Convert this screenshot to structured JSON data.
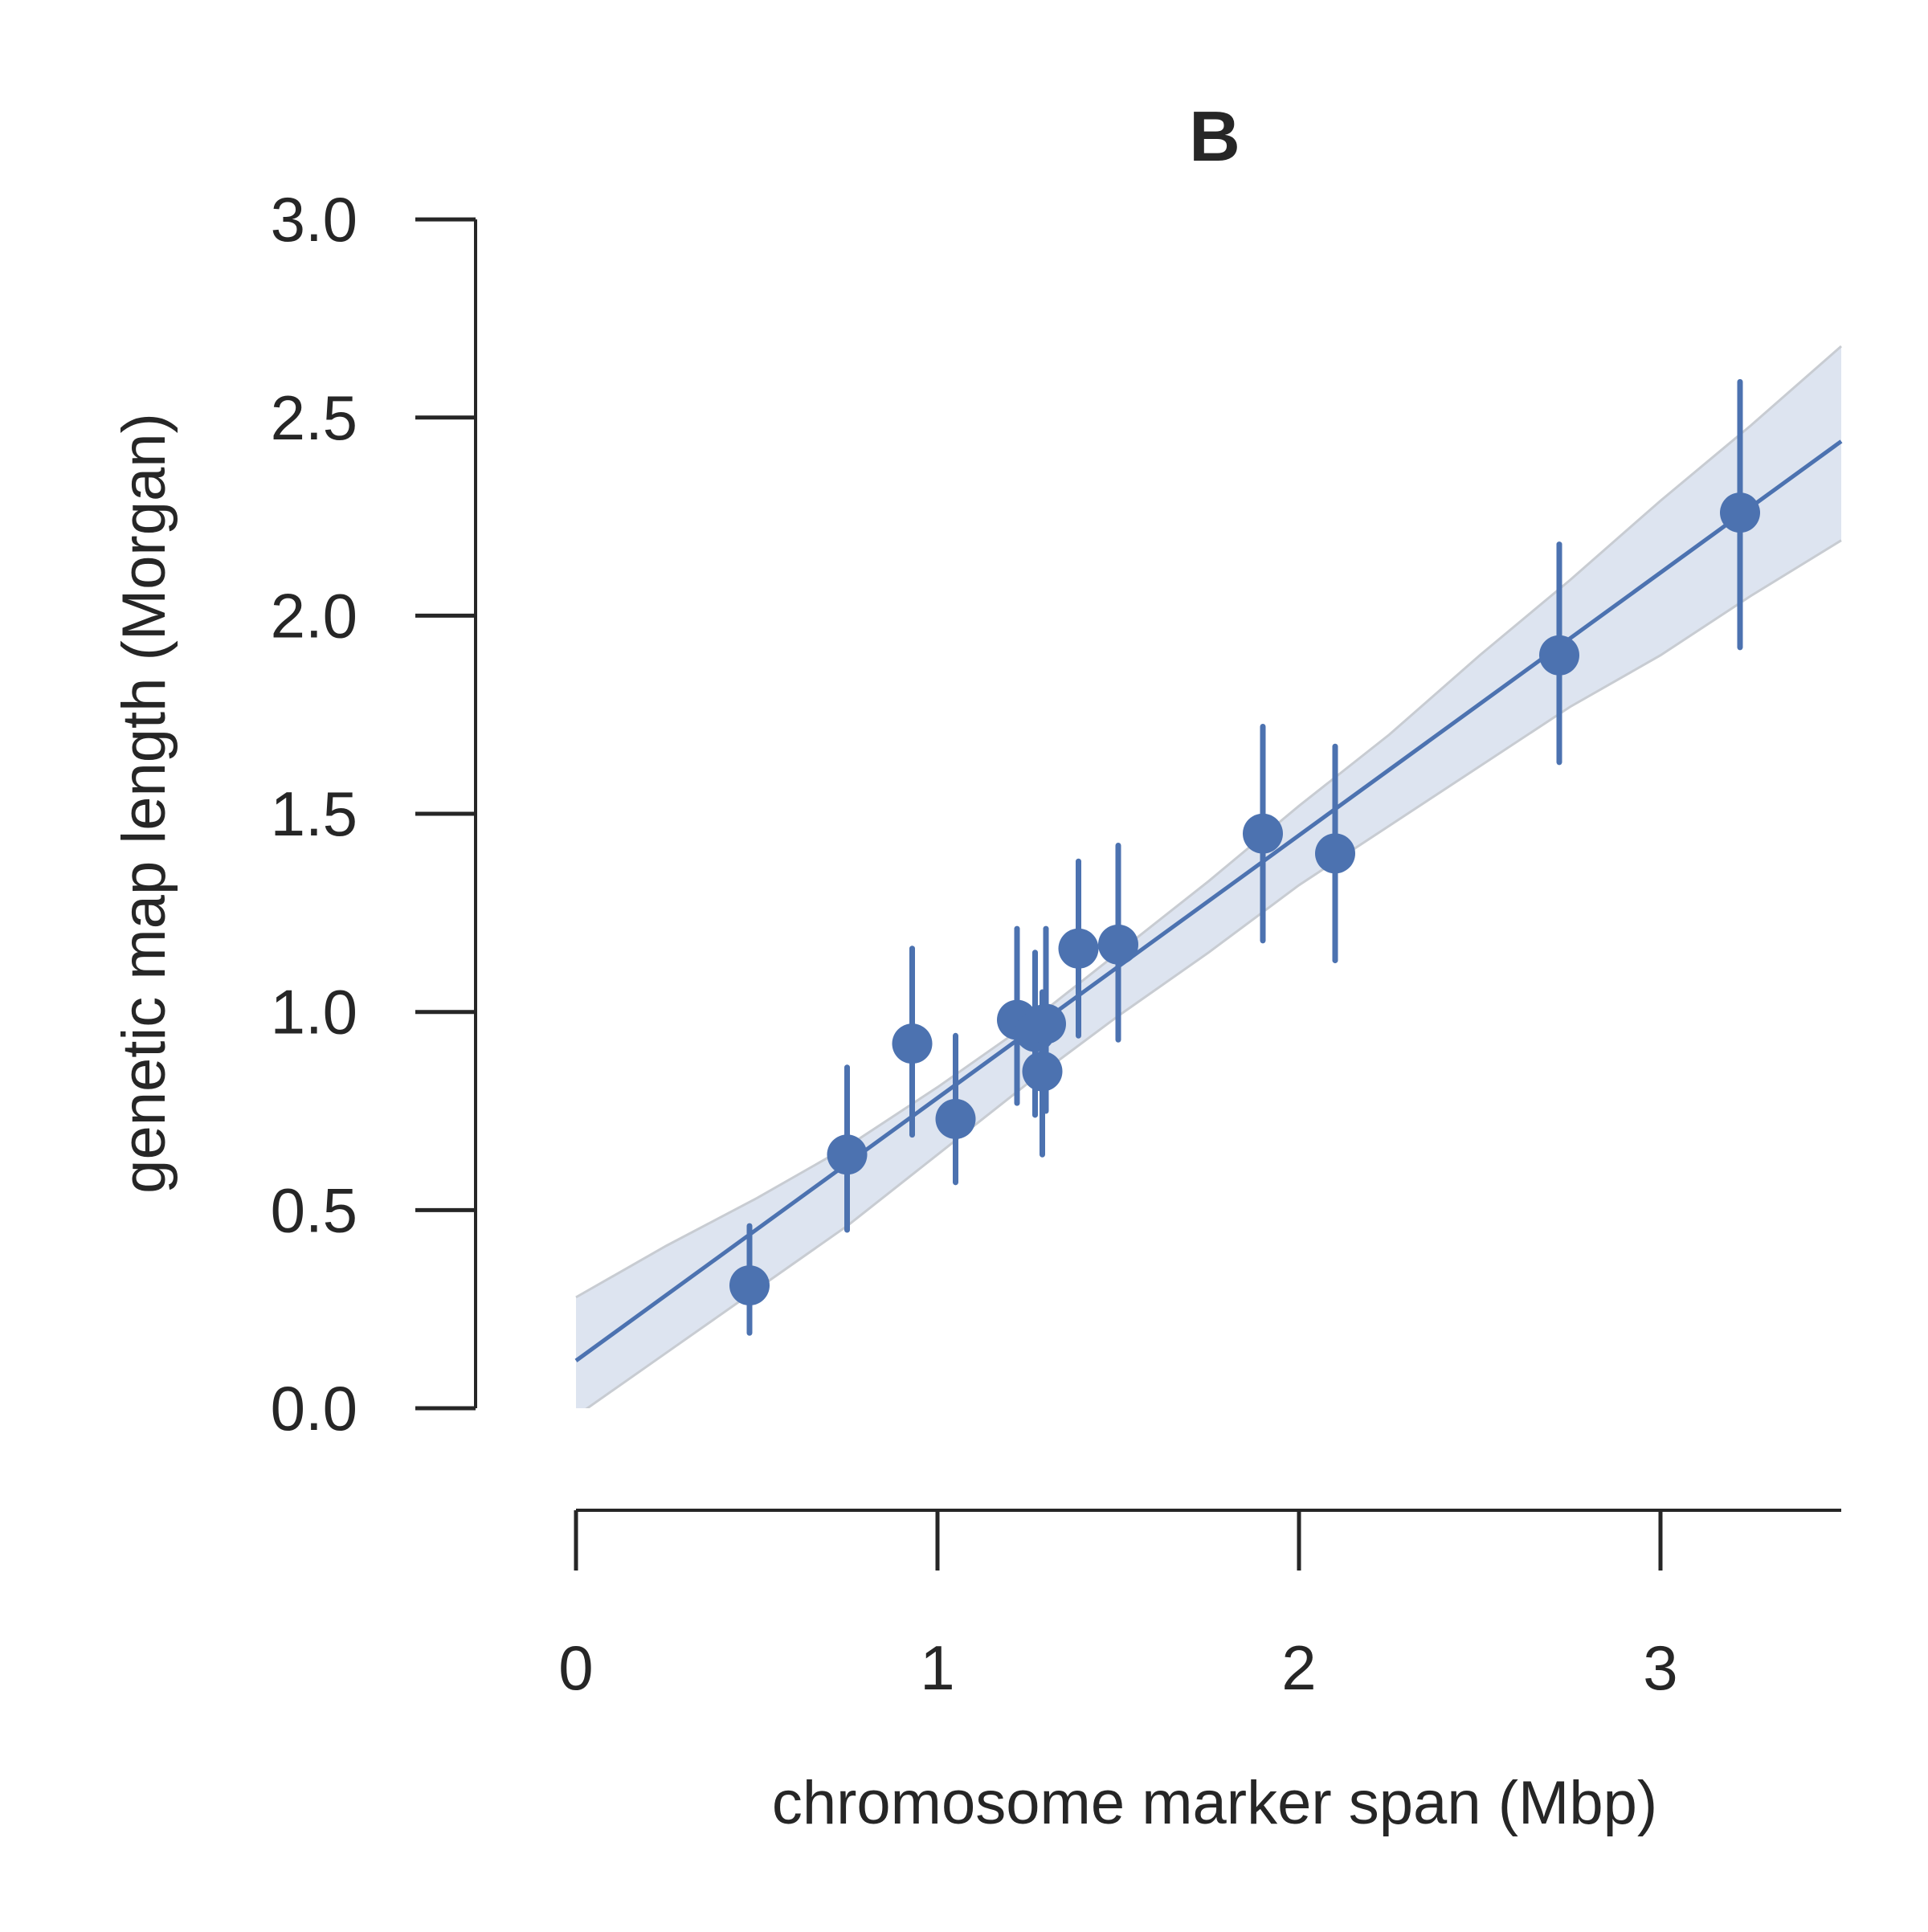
{
  "chart_data": {
    "type": "scatter",
    "title": "B",
    "xlabel": "chromosome marker span (Mbp)",
    "ylabel": "genetic map length (Morgan)",
    "xlim": [
      0,
      3.5
    ],
    "ylim": [
      0,
      3.0
    ],
    "x_ticks": [
      "0",
      "1",
      "2",
      "3"
    ],
    "y_ticks": [
      "0.0",
      "0.5",
      "1.0",
      "1.5",
      "2.0",
      "2.5",
      "3.0"
    ],
    "grid": false,
    "legend": "none",
    "colors": {
      "points": "#4C72B0",
      "line": "#4C72B0",
      "band": "#DDE4F0",
      "band_edge": "#C8CCD2",
      "axis": "#262626"
    },
    "points": [
      {
        "x": 0.48,
        "y": 0.31,
        "err_low": 0.19,
        "err_high": 0.46
      },
      {
        "x": 0.75,
        "y": 0.64,
        "err_low": 0.45,
        "err_high": 0.86
      },
      {
        "x": 0.93,
        "y": 0.92,
        "err_low": 0.69,
        "err_high": 1.16
      },
      {
        "x": 1.05,
        "y": 0.73,
        "err_low": 0.57,
        "err_high": 0.94
      },
      {
        "x": 1.22,
        "y": 0.98,
        "err_low": 0.77,
        "err_high": 1.21
      },
      {
        "x": 1.27,
        "y": 0.95,
        "err_low": 0.74,
        "err_high": 1.15
      },
      {
        "x": 1.29,
        "y": 0.85,
        "err_low": 0.64,
        "err_high": 1.05
      },
      {
        "x": 1.3,
        "y": 0.97,
        "err_low": 0.75,
        "err_high": 1.21
      },
      {
        "x": 1.39,
        "y": 1.16,
        "err_low": 0.94,
        "err_high": 1.38
      },
      {
        "x": 1.5,
        "y": 1.17,
        "err_low": 0.93,
        "err_high": 1.42
      },
      {
        "x": 1.9,
        "y": 1.45,
        "err_low": 1.18,
        "err_high": 1.72
      },
      {
        "x": 2.1,
        "y": 1.4,
        "err_low": 1.13,
        "err_high": 1.67
      },
      {
        "x": 2.72,
        "y": 1.9,
        "err_low": 1.63,
        "err_high": 2.18
      },
      {
        "x": 3.22,
        "y": 2.26,
        "err_low": 1.92,
        "err_high": 2.59
      }
    ],
    "fit_line": {
      "x": [
        0,
        3.5
      ],
      "y": [
        0.12,
        2.44
      ]
    },
    "confidence_band": {
      "x": [
        0,
        0.25,
        0.5,
        0.75,
        1.0,
        1.25,
        1.5,
        1.75,
        2.0,
        2.25,
        2.5,
        2.75,
        3.0,
        3.25,
        3.5
      ],
      "upper": [
        0.28,
        0.41,
        0.53,
        0.66,
        0.81,
        0.97,
        1.15,
        1.33,
        1.52,
        1.7,
        1.9,
        2.09,
        2.29,
        2.48,
        2.68
      ],
      "lower": [
        -0.02,
        0.14,
        0.3,
        0.46,
        0.64,
        0.82,
        0.99,
        1.15,
        1.32,
        1.47,
        1.62,
        1.77,
        1.9,
        2.05,
        2.19
      ]
    }
  }
}
